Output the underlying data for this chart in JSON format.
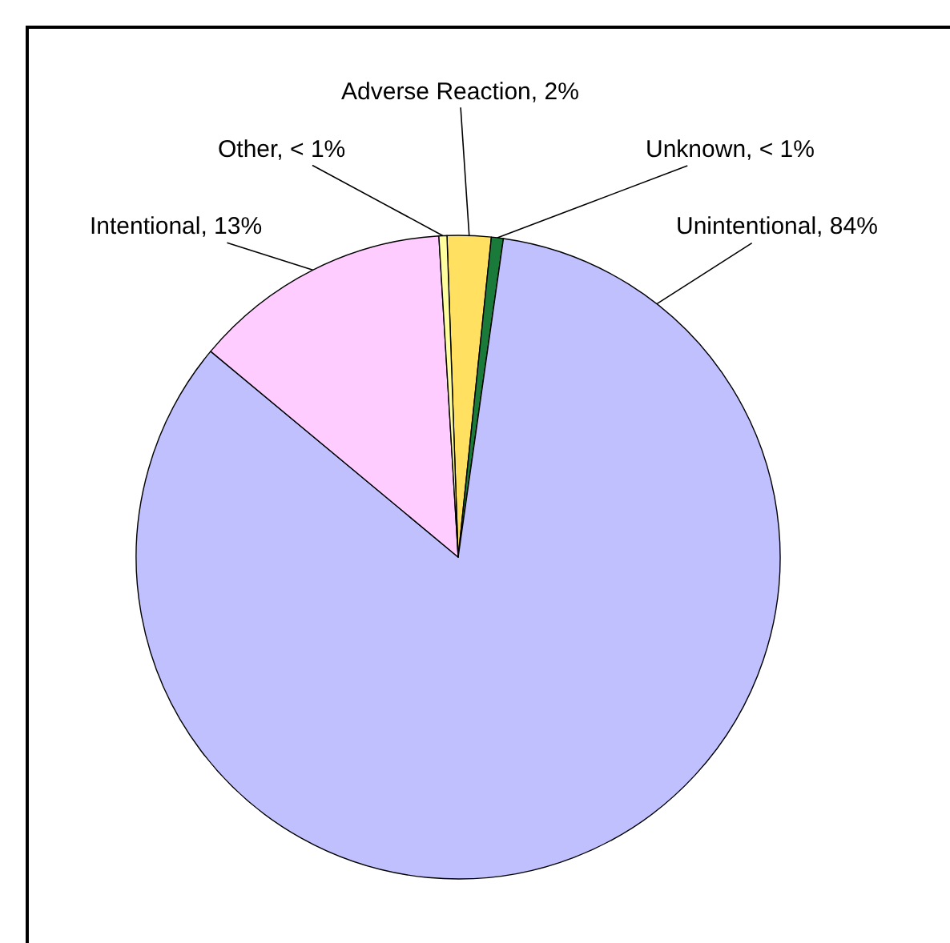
{
  "chart_data": {
    "type": "pie",
    "categories": [
      "Adverse Reaction",
      "Unknown",
      "Unintentional",
      "Intentional",
      "Other"
    ],
    "values": [
      2.2,
      0.6,
      83.8,
      13.0,
      0.4
    ],
    "colors": [
      "#ffe060",
      "#1a7a3a",
      "#c0c0ff",
      "#ffccff",
      "#ffffa0"
    ],
    "value_labels": [
      "2%",
      "< 1%",
      "84%",
      "13%",
      "< 1%"
    ]
  }
}
